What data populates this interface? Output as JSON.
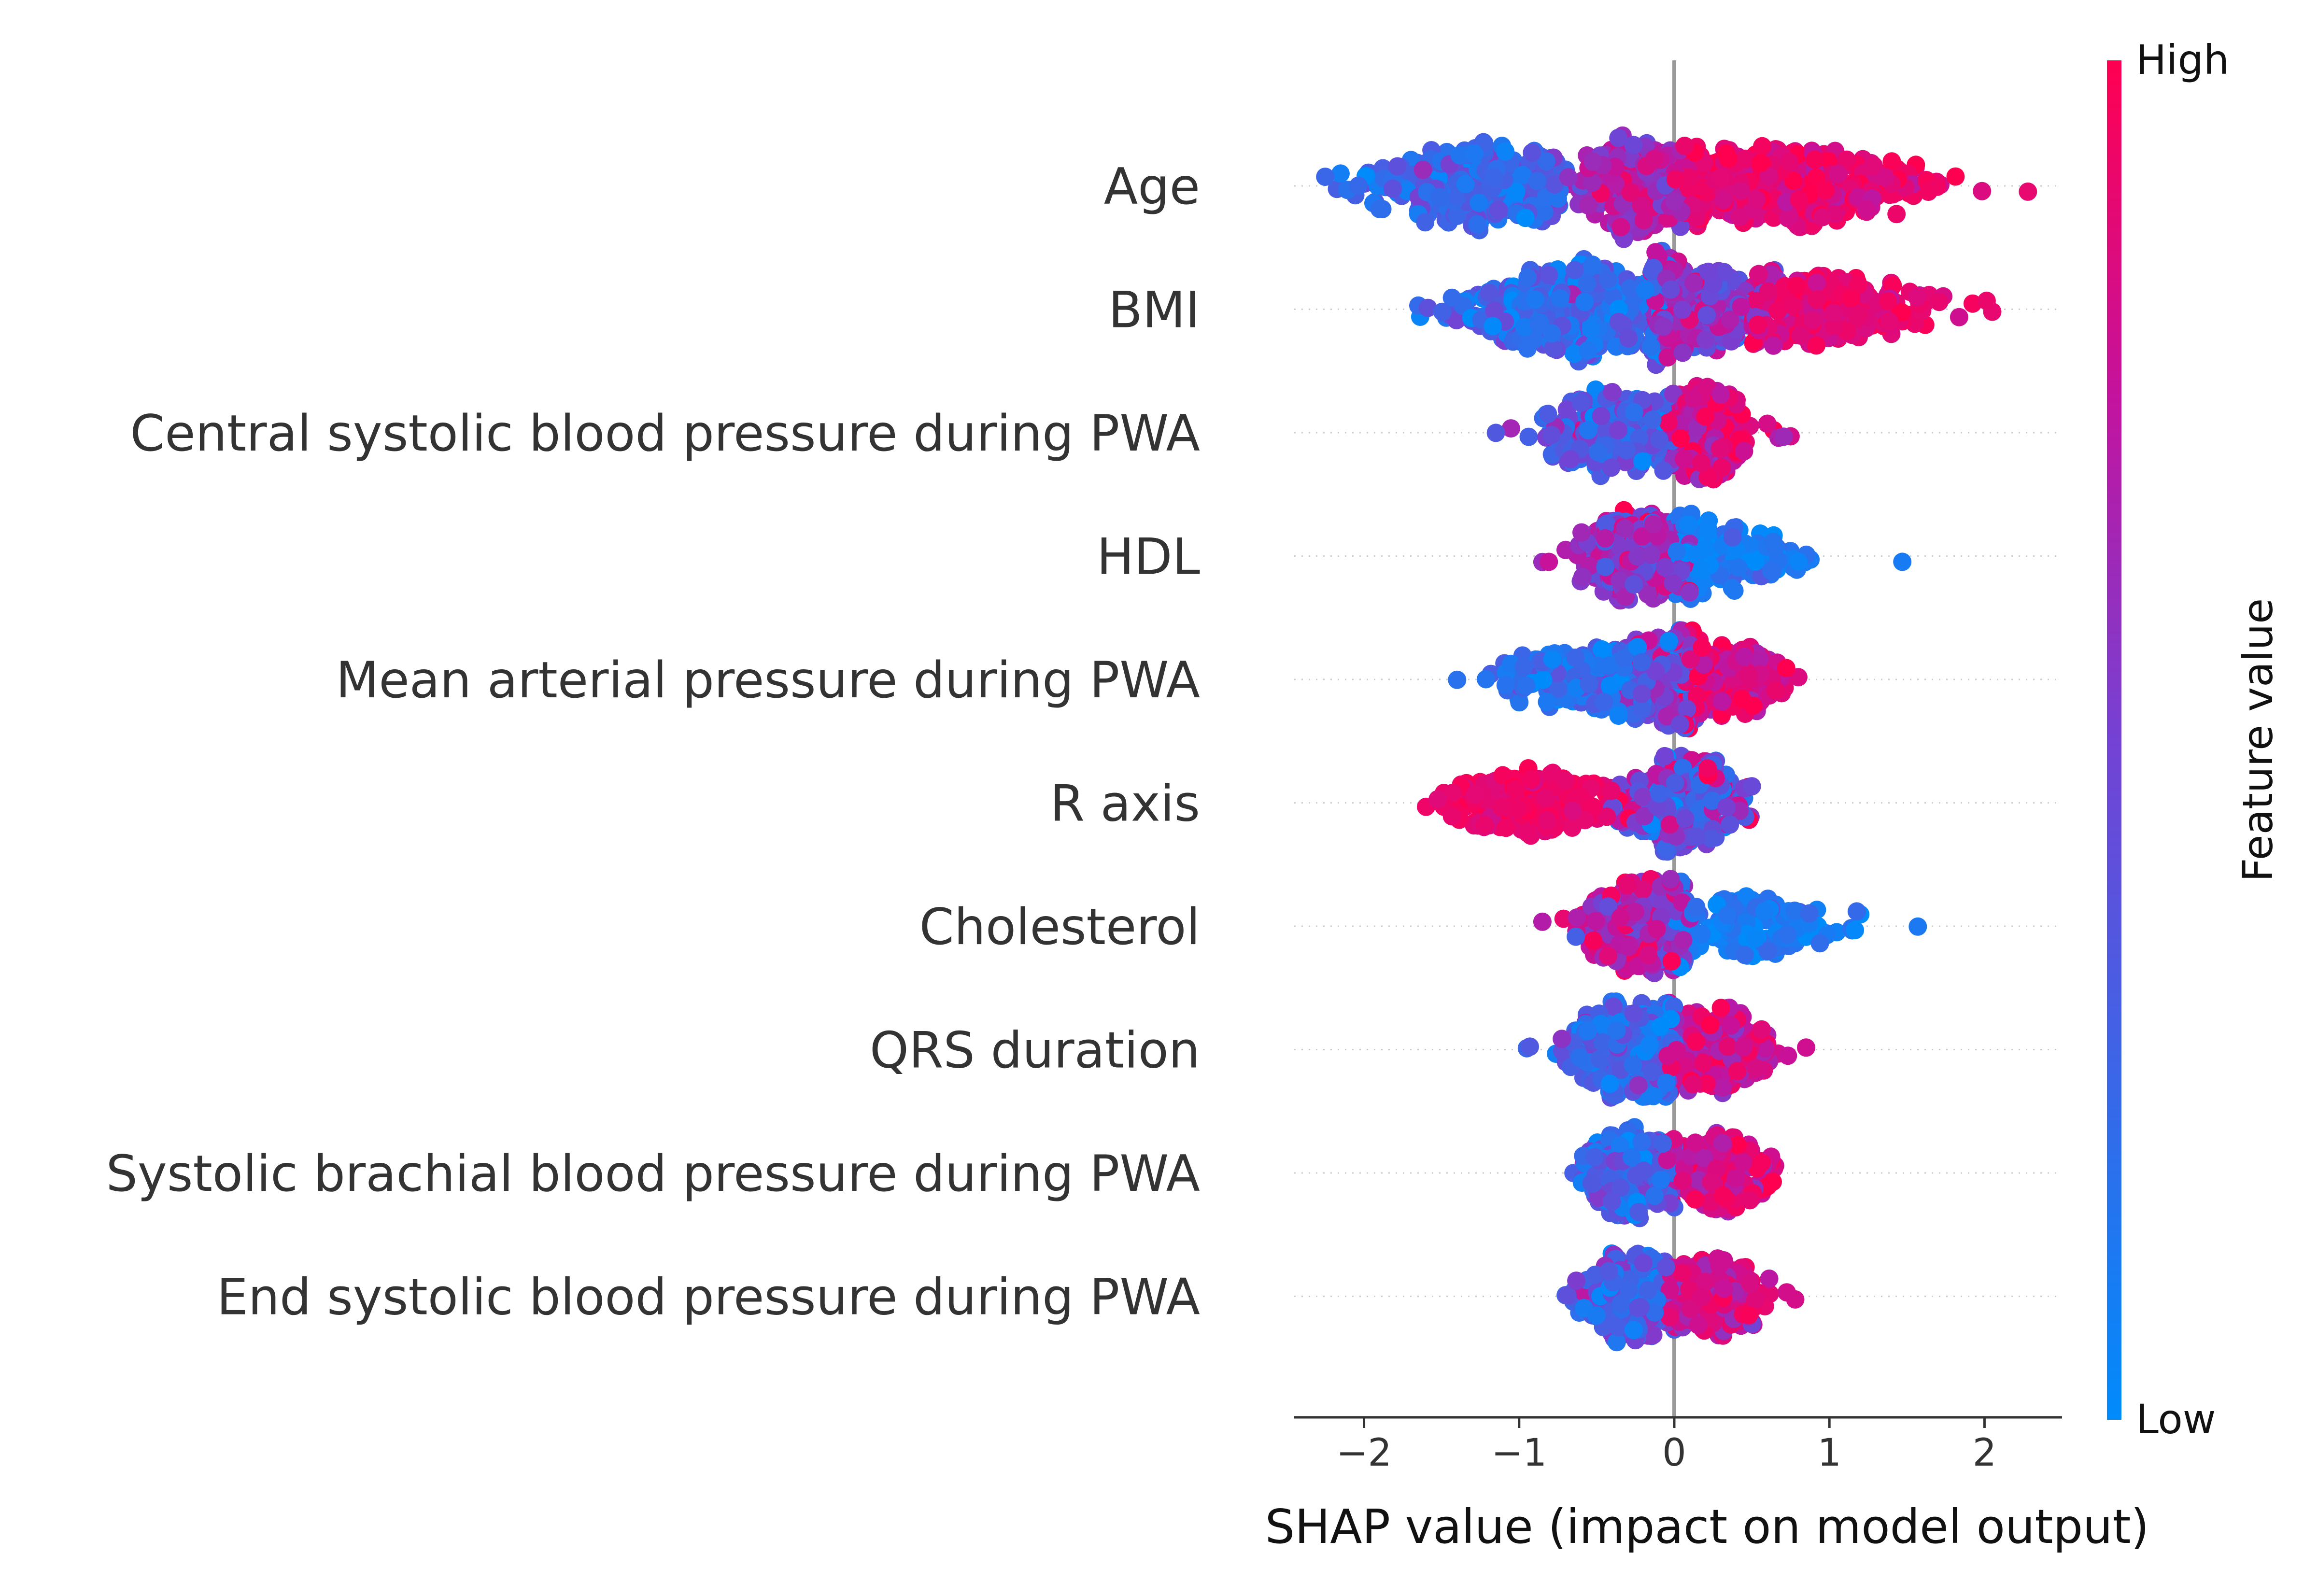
{
  "chart_data": {
    "type": "scatter",
    "subtype": "shap-beeswarm-summary",
    "xlabel": "SHAP value (impact on model output)",
    "xlim": [
      -2.45,
      2.5
    ],
    "xticks": [
      -2,
      -1,
      0,
      1,
      2
    ],
    "xtick_labels": [
      "−2",
      "−1",
      "0",
      "1",
      "2"
    ],
    "grid": false,
    "colorbar": {
      "label": "Feature value",
      "high_label": "High",
      "low_label": "Low",
      "low_color": "#008bfb",
      "high_color": "#ff0051",
      "placement": "right"
    },
    "colors": {
      "zero_line": "#999999",
      "text": "#333333",
      "axis": "#333333"
    },
    "features": [
      {
        "name": "Age",
        "spread": 0.33,
        "clusters": [
          {
            "center": -1.3,
            "sd": 0.35,
            "min": -2.25,
            "max": -0.7,
            "n": 320,
            "color_mean": 0.25,
            "color_sd": 0.12
          },
          {
            "center": -0.25,
            "sd": 0.18,
            "min": -0.7,
            "max": 0.05,
            "n": 240,
            "color_mean": 0.68,
            "color_sd": 0.12
          },
          {
            "center": 0.7,
            "sd": 0.45,
            "min": 0.05,
            "max": 2.28,
            "n": 360,
            "color_mean": 0.9,
            "color_sd": 0.07
          }
        ]
      },
      {
        "name": "BMI",
        "spread": 0.36,
        "clusters": [
          {
            "center": -0.65,
            "sd": 0.35,
            "min": -1.65,
            "max": 0.0,
            "n": 420,
            "color_mean": 0.22,
            "color_sd": 0.14
          },
          {
            "center": 0.15,
            "sd": 0.25,
            "min": -0.15,
            "max": 0.7,
            "n": 260,
            "color_mean": 0.6,
            "color_sd": 0.16
          },
          {
            "center": 1.0,
            "sd": 0.35,
            "min": 0.5,
            "max": 2.05,
            "n": 220,
            "color_mean": 0.9,
            "color_sd": 0.07
          }
        ]
      },
      {
        "name": "Central systolic blood pressure during PWA",
        "spread": 0.3,
        "clusters": [
          {
            "center": -0.4,
            "sd": 0.25,
            "min": -1.15,
            "max": 0.0,
            "n": 220,
            "color_mean": 0.35,
            "color_sd": 0.16
          },
          {
            "center": 0.2,
            "sd": 0.15,
            "min": -0.05,
            "max": 0.75,
            "n": 200,
            "color_mean": 0.82,
            "color_sd": 0.1
          }
        ]
      },
      {
        "name": "HDL",
        "spread": 0.3,
        "clusters": [
          {
            "center": -0.25,
            "sd": 0.2,
            "min": -0.85,
            "max": 0.1,
            "n": 280,
            "color_mean": 0.62,
            "color_sd": 0.16
          },
          {
            "center": 0.3,
            "sd": 0.3,
            "min": 0.0,
            "max": 1.47,
            "n": 170,
            "color_mean": 0.1,
            "color_sd": 0.08
          }
        ]
      },
      {
        "name": "Mean arterial pressure during PWA",
        "spread": 0.3,
        "clusters": [
          {
            "center": -0.6,
            "sd": 0.25,
            "min": -1.4,
            "max": -0.2,
            "n": 170,
            "color_mean": 0.18,
            "color_sd": 0.1
          },
          {
            "center": -0.1,
            "sd": 0.15,
            "min": -0.45,
            "max": 0.15,
            "n": 220,
            "color_mean": 0.45,
            "color_sd": 0.2
          },
          {
            "center": 0.35,
            "sd": 0.2,
            "min": 0.05,
            "max": 0.8,
            "n": 190,
            "color_mean": 0.85,
            "color_sd": 0.1
          }
        ]
      },
      {
        "name": "R axis",
        "spread": 0.3,
        "clusters": [
          {
            "center": -0.95,
            "sd": 0.3,
            "min": -1.6,
            "max": -0.3,
            "n": 180,
            "color_mean": 0.93,
            "color_sd": 0.05
          },
          {
            "center": 0.05,
            "sd": 0.18,
            "min": -0.4,
            "max": 0.5,
            "n": 290,
            "color_mean": 0.45,
            "color_sd": 0.22
          }
        ]
      },
      {
        "name": "Cholesterol",
        "spread": 0.3,
        "clusters": [
          {
            "center": -0.2,
            "sd": 0.18,
            "min": -0.85,
            "max": 0.1,
            "n": 270,
            "color_mean": 0.7,
            "color_sd": 0.15
          },
          {
            "center": 0.45,
            "sd": 0.35,
            "min": 0.0,
            "max": 1.57,
            "n": 170,
            "color_mean": 0.12,
            "color_sd": 0.08
          }
        ]
      },
      {
        "name": "QRS duration",
        "spread": 0.3,
        "clusters": [
          {
            "center": -0.3,
            "sd": 0.22,
            "min": -0.95,
            "max": 0.0,
            "n": 280,
            "color_mean": 0.25,
            "color_sd": 0.15
          },
          {
            "center": 0.25,
            "sd": 0.2,
            "min": -0.05,
            "max": 0.85,
            "n": 220,
            "color_mean": 0.8,
            "color_sd": 0.12
          }
        ]
      },
      {
        "name": "Systolic brachial blood pressure during PWA",
        "spread": 0.28,
        "clusters": [
          {
            "center": -0.3,
            "sd": 0.15,
            "min": -0.65,
            "max": 0.0,
            "n": 220,
            "color_mean": 0.3,
            "color_sd": 0.15
          },
          {
            "center": 0.25,
            "sd": 0.18,
            "min": -0.05,
            "max": 0.65,
            "n": 200,
            "color_mean": 0.82,
            "color_sd": 0.1
          }
        ]
      },
      {
        "name": "End systolic blood pressure during PWA",
        "spread": 0.28,
        "clusters": [
          {
            "center": -0.3,
            "sd": 0.15,
            "min": -0.7,
            "max": 0.0,
            "n": 220,
            "color_mean": 0.3,
            "color_sd": 0.15
          },
          {
            "center": 0.25,
            "sd": 0.2,
            "min": -0.05,
            "max": 0.78,
            "n": 200,
            "color_mean": 0.82,
            "color_sd": 0.1
          }
        ]
      }
    ]
  }
}
